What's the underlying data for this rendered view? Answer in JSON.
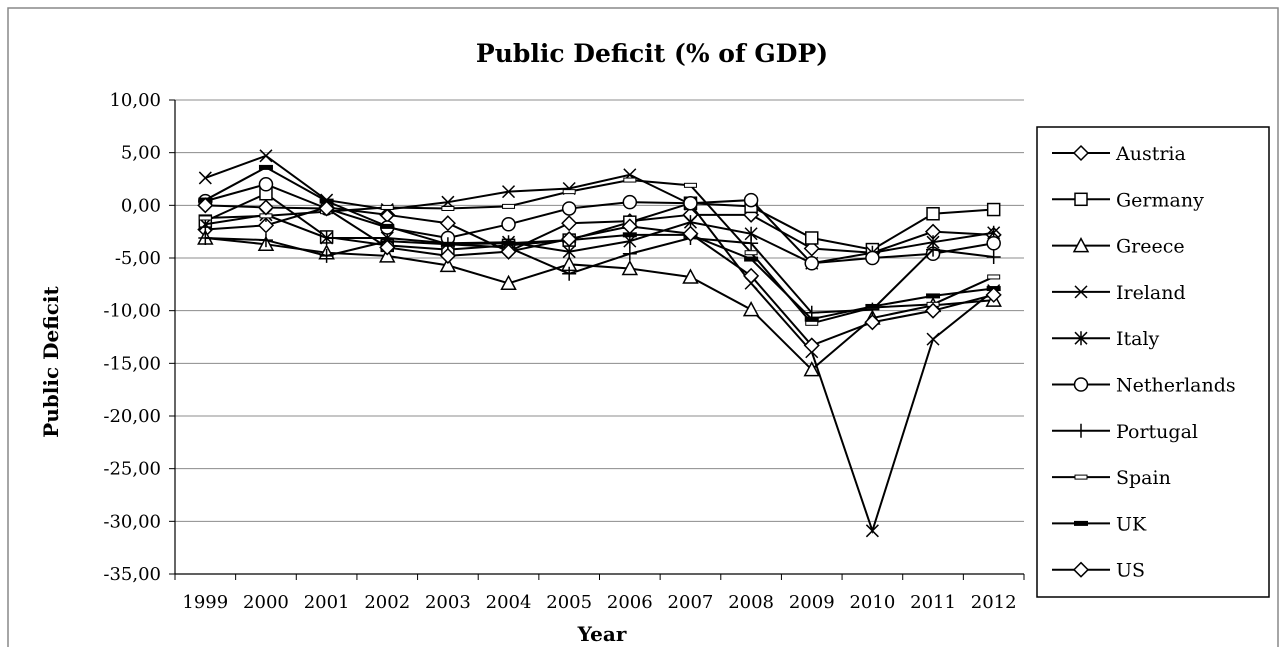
{
  "chart_data": {
    "type": "line",
    "title": "Public Deficit (% of GDP)",
    "xlabel": "Year",
    "ylabel": "Public Deficit",
    "x": [
      "1999",
      "2000",
      "2001",
      "2002",
      "2003",
      "2004",
      "2005",
      "2006",
      "2007",
      "2008",
      "2009",
      "2010",
      "2011",
      "2012"
    ],
    "ylim": [
      -35,
      10
    ],
    "yticks": [
      10,
      5,
      0,
      -5,
      -10,
      -15,
      -20,
      -25,
      -30,
      -35
    ],
    "ytick_labels": [
      "10,00",
      "5,00",
      "0,00",
      "-5,00",
      "-10,00",
      "-15,00",
      "-20,00",
      "-25,00",
      "-30,00",
      "-35,00"
    ],
    "grid": true,
    "legend_position": "right",
    "series": [
      {
        "name": "Austria",
        "marker": "diamond",
        "values": [
          -2.3,
          -1.9,
          -0.2,
          -0.9,
          -1.7,
          -4.4,
          -1.7,
          -1.5,
          -0.9,
          -0.9,
          -4.1,
          -4.5,
          -2.5,
          -2.8
        ]
      },
      {
        "name": "Germany",
        "marker": "square",
        "values": [
          -1.5,
          1.1,
          -3.0,
          -3.8,
          -4.2,
          -3.8,
          -3.3,
          -1.6,
          0.2,
          -0.1,
          -3.1,
          -4.2,
          -0.8,
          -0.4
        ]
      },
      {
        "name": "Greece",
        "marker": "triangle",
        "values": [
          -3.1,
          -3.7,
          -4.5,
          -4.8,
          -5.7,
          -7.4,
          -5.6,
          -6.0,
          -6.8,
          -9.9,
          -15.6,
          -10.7,
          -9.5,
          -9.0
        ]
      },
      {
        "name": "Ireland",
        "marker": "x",
        "values": [
          2.6,
          4.7,
          0.5,
          -0.4,
          0.3,
          1.3,
          1.6,
          2.9,
          0.1,
          -7.4,
          -13.9,
          -30.9,
          -12.7,
          -8.1
        ]
      },
      {
        "name": "Italy",
        "marker": "asterisk",
        "values": [
          -1.8,
          -0.9,
          -3.1,
          -3.1,
          -3.6,
          -3.5,
          -4.4,
          -3.4,
          -1.6,
          -2.7,
          -5.5,
          -4.5,
          -3.5,
          -2.6
        ]
      },
      {
        "name": "Netherlands",
        "marker": "circle",
        "values": [
          0.4,
          2.0,
          -0.3,
          -2.1,
          -3.1,
          -1.8,
          -0.3,
          0.3,
          0.2,
          0.5,
          -5.5,
          -5.0,
          -4.6,
          -3.6
        ]
      },
      {
        "name": "Portugal",
        "marker": "plus",
        "values": [
          -3.1,
          -3.3,
          -4.8,
          -3.4,
          -3.7,
          -4.0,
          -6.5,
          -4.6,
          -3.1,
          -3.6,
          -10.2,
          -9.9,
          -4.2,
          -4.9
        ]
      },
      {
        "name": "Spain",
        "marker": "dash",
        "values": [
          -1.2,
          -1.0,
          -0.6,
          -0.2,
          -0.3,
          -0.1,
          1.3,
          2.4,
          1.9,
          -4.5,
          -11.2,
          -9.7,
          -9.4,
          -6.8
        ]
      },
      {
        "name": "UK",
        "marker": "bar",
        "values": [
          0.5,
          3.6,
          0.4,
          -2.0,
          -3.7,
          -3.6,
          -3.3,
          -2.8,
          -2.8,
          -5.1,
          -10.8,
          -9.6,
          -8.6,
          -7.9
        ]
      },
      {
        "name": "US",
        "marker": "diamond",
        "values": [
          0.0,
          -0.2,
          -0.3,
          -4.0,
          -4.8,
          -4.4,
          -3.2,
          -2.0,
          -2.7,
          -6.7,
          -13.3,
          -11.1,
          -10.0,
          -8.5
        ]
      }
    ]
  }
}
